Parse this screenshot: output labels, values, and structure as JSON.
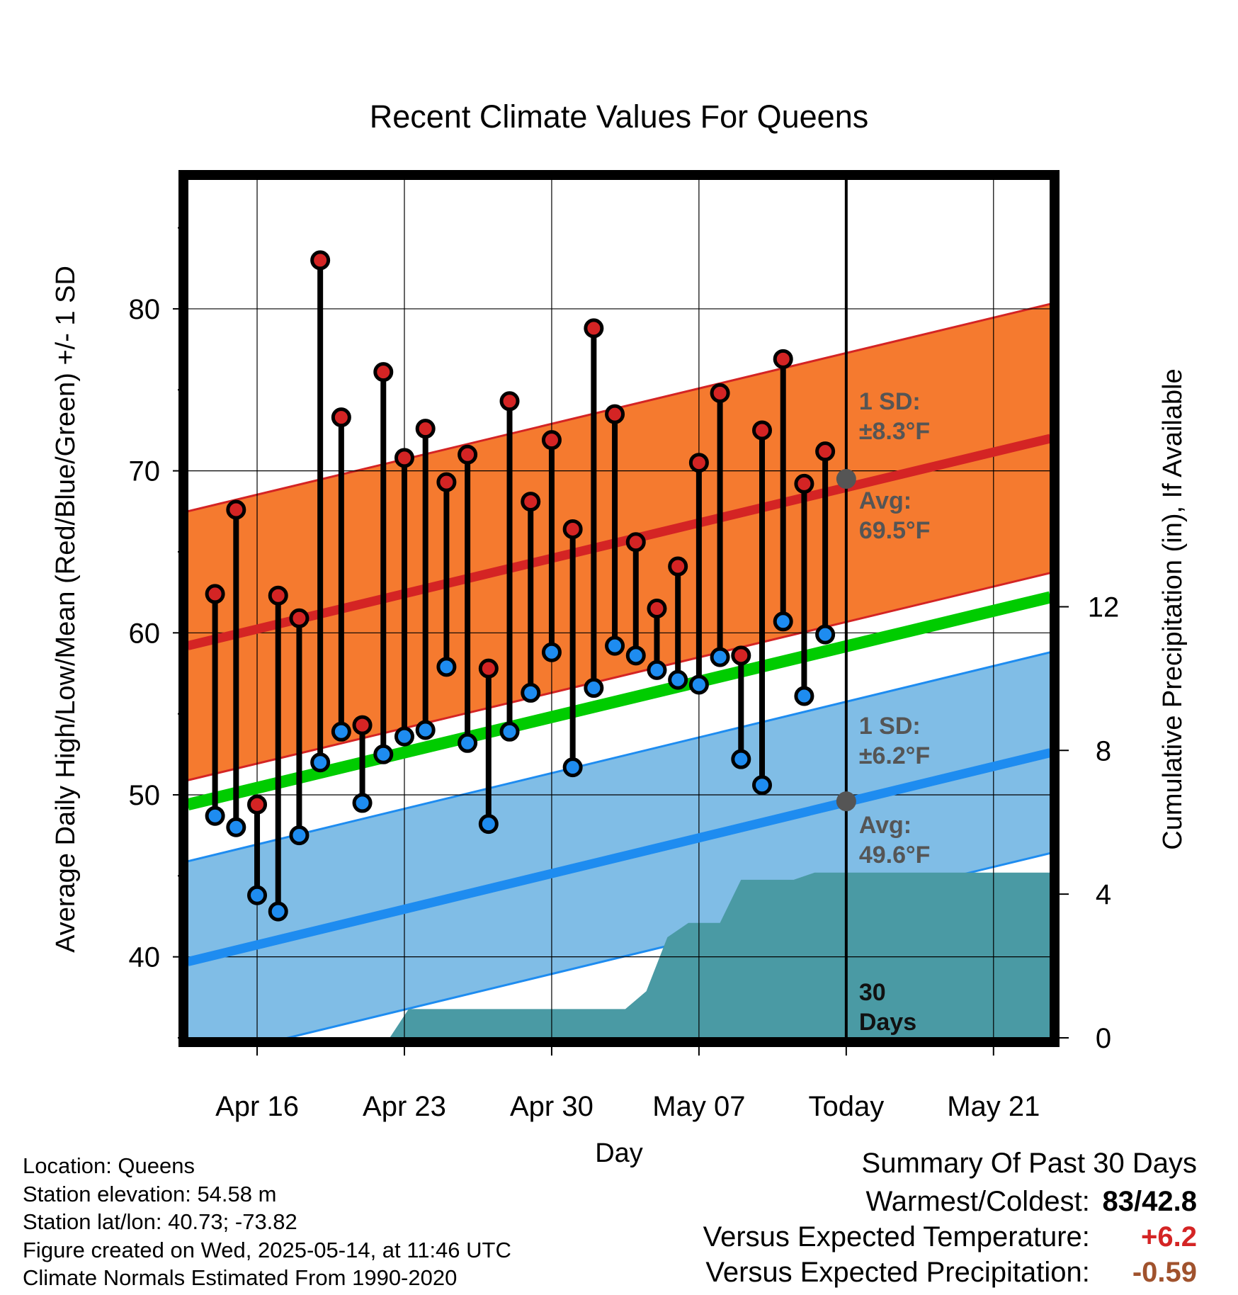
{
  "chart_data": {
    "type": "line",
    "title": "Recent Climate Values For Queens",
    "xlabel": "Day",
    "ylabel": "Average Daily High/Low/Mean (Red/Blue/Green) +/- 1 SD",
    "y2label": "Cumulative Precipitation (in), If Available",
    "x_ticks": [
      "Apr 16",
      "Apr 23",
      "Apr 30",
      "May 07",
      "Today",
      "May 21"
    ],
    "x_tick_days": [
      0,
      7,
      14,
      21,
      28,
      35
    ],
    "x_range": [
      -3.3,
      37.7
    ],
    "y_range": [
      35,
      88
    ],
    "y_ticks": [
      40,
      50,
      60,
      70,
      80
    ],
    "y2_range": [
      0,
      23.9
    ],
    "y2_ticks": [
      0,
      4,
      8,
      12
    ],
    "today_day": 28,
    "observations": {
      "days": [
        -2,
        -1,
        0,
        1,
        2,
        3,
        4,
        5,
        6,
        7,
        8,
        9,
        10,
        11,
        12,
        13,
        14,
        15,
        16,
        17,
        18,
        19,
        20,
        21,
        22,
        23,
        24,
        25,
        26,
        27
      ],
      "highs": [
        62.4,
        67.6,
        49.4,
        62.3,
        60.9,
        83.0,
        73.3,
        54.3,
        76.1,
        70.8,
        72.6,
        69.3,
        71.0,
        57.8,
        74.3,
        68.1,
        71.9,
        66.4,
        78.8,
        73.5,
        65.6,
        61.5,
        64.1,
        70.5,
        74.8,
        58.6,
        72.5,
        76.9,
        69.2,
        71.2
      ],
      "lows": [
        48.7,
        48.0,
        43.8,
        42.8,
        47.5,
        52.0,
        53.9,
        49.5,
        52.5,
        53.6,
        54.0,
        57.9,
        53.2,
        48.2,
        53.9,
        56.3,
        58.8,
        51.7,
        56.6,
        59.2,
        58.6,
        57.7,
        57.1,
        56.8,
        58.5,
        52.2,
        50.6,
        60.7,
        56.1,
        59.9
      ]
    },
    "normals": {
      "days": [
        -3.3,
        37.7
      ],
      "mean_high": [
        59.2,
        72.0
      ],
      "mean_low": [
        39.7,
        52.6
      ],
      "mean": [
        49.4,
        62.2
      ],
      "high_sd": 8.3,
      "low_sd": 6.2
    },
    "precipitation": {
      "days": [
        6.3,
        7.2,
        17.5,
        18.5,
        19.5,
        20.5,
        22.0,
        23.0,
        25.5,
        26.5,
        27.5,
        37.7
      ],
      "cumulative": [
        0,
        0.8,
        0.8,
        1.3,
        2.8,
        3.2,
        3.2,
        4.4,
        4.4,
        4.6,
        4.6,
        4.6
      ]
    },
    "annotations": {
      "high_sd_label": [
        "1 SD:",
        "±8.3°F"
      ],
      "high_avg_label": [
        "Avg:",
        "69.5°F"
      ],
      "high_avg_value": 69.5,
      "low_sd_label": [
        "1 SD:",
        "±6.2°F"
      ],
      "low_avg_label": [
        "Avg:",
        "49.6°F"
      ],
      "low_avg_value": 49.6,
      "period_label": [
        "30",
        "Days"
      ]
    },
    "colors": {
      "high_band": "#f57a2f",
      "high_line": "#d42424",
      "low_band": "#80bde6",
      "low_line": "#1e8cf0",
      "mean_line": "#00cc00",
      "precip": "#4a9aa4",
      "high_marker": "#d42424",
      "low_marker": "#1e8cf0",
      "annotation_text": "#555555"
    }
  },
  "info": {
    "location": "Location: Queens",
    "elevation": "Station elevation: 54.58 m",
    "latlon": "Station lat/lon: 40.73; -73.82",
    "created": "Figure created on Wed, 2025-05-14, at 11:46 UTC",
    "normals": "Climate Normals Estimated From 1990-2020"
  },
  "summary": {
    "title": "Summary Of Past 30 Days",
    "warmest_label": "Warmest/Coldest:",
    "warmest_value": "83/42.8",
    "temp_label": "Versus Expected Temperature:",
    "temp_value": "+6.2",
    "temp_color": "#d42424",
    "precip_label": "Versus Expected Precipitation:",
    "precip_value": "-0.59",
    "precip_color": "#a0522d"
  }
}
